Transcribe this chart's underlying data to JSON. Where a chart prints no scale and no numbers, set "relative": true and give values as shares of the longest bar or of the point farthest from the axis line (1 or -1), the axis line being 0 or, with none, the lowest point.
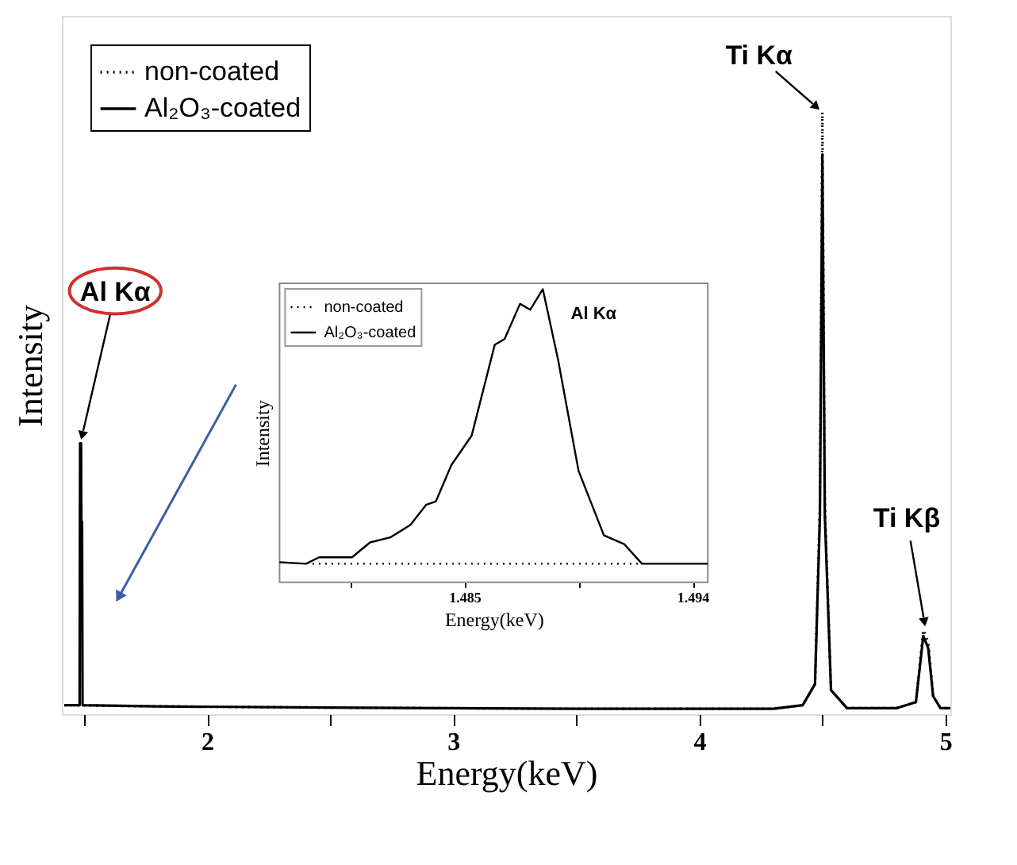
{
  "chart_data": [
    {
      "type": "line",
      "xlabel": "Energy(keV)",
      "ylabel": "Intensity",
      "relative": true,
      "xlim": [
        1.41,
        5.02
      ],
      "xticks": [
        {
          "value": 1.5,
          "label": null
        },
        2,
        {
          "value": 2.5,
          "label": null
        },
        3,
        {
          "value": 3.5,
          "label": null
        },
        4,
        {
          "value": 4.5,
          "label": null
        },
        5
      ],
      "tick_labels": "x",
      "legend": "top left",
      "grid": false,
      "series": [
        {
          "name": "non-coated",
          "color": "#000000",
          "line_style": "dotted",
          "x": [
            1.42,
            1.8,
            2.5,
            3.5,
            4.3,
            4.42,
            4.47,
            4.49,
            4.5,
            4.51,
            4.535,
            4.6,
            4.8,
            4.88,
            4.91,
            4.93,
            4.95,
            4.98,
            5.02
          ],
          "values": [
            0.015,
            0.013,
            0.011,
            0.009,
            0.009,
            0.015,
            0.05,
            0.35,
            1.0,
            0.35,
            0.04,
            0.01,
            0.01,
            0.02,
            0.14,
            0.12,
            0.03,
            0.01,
            0.01
          ]
        },
        {
          "name": "Al₂O₃-coated",
          "color": "#000000",
          "line_style": "solid",
          "x": [
            1.42,
            1.47,
            1.482,
            1.484,
            1.488,
            1.489,
            1.492,
            1.494,
            1.8,
            2.5,
            3.5,
            4.3,
            4.42,
            4.47,
            4.49,
            4.5,
            4.51,
            4.535,
            4.6,
            4.8,
            4.88,
            4.91,
            4.93,
            4.95,
            4.98,
            5.02
          ],
          "values": [
            0.015,
            0.015,
            0.015,
            0.45,
            0.45,
            0.32,
            0.32,
            0.015,
            0.013,
            0.011,
            0.009,
            0.009,
            0.015,
            0.05,
            0.33,
            0.93,
            0.33,
            0.04,
            0.01,
            0.01,
            0.02,
            0.13,
            0.11,
            0.03,
            0.01,
            0.01
          ]
        }
      ],
      "annotations": [
        {
          "text": "Al Kα",
          "x": 1.485,
          "y": 0.45
        },
        {
          "text": "Ti Kα",
          "x": 4.5,
          "y": 1.0
        },
        {
          "text": "Ti Kβ",
          "x": 4.92,
          "y": 0.14
        }
      ]
    },
    {
      "type": "line",
      "xlabel": "Energy(keV)",
      "ylabel": "Intensity",
      "relative": true,
      "xlim": [
        1.4777,
        1.4946
      ],
      "xticks": [
        {
          "value": 1.4805,
          "label": null
        },
        1.485,
        {
          "value": 1.4895,
          "label": null
        },
        1.494
      ],
      "tick_labels": "x",
      "legend": "top left",
      "grid": false,
      "series": [
        {
          "name": "non-coated",
          "color": "#000000",
          "line_style": "dotted",
          "x": [
            1.479,
            1.492
          ],
          "values": [
            0.063,
            0.063
          ]
        },
        {
          "name": "Al₂O₃-coated",
          "color": "#000000",
          "line_style": "solid",
          "x": [
            1.4777,
            1.47875,
            1.47926,
            1.48006,
            1.48056,
            1.48127,
            1.48207,
            1.48287,
            1.48348,
            1.48387,
            1.48448,
            1.48528,
            1.48619,
            1.48658,
            1.48719,
            1.48759,
            1.48809,
            1.48869,
            1.4895,
            1.4905,
            1.4913,
            1.492,
            1.4933,
            1.4946
          ],
          "values": [
            0.068,
            0.063,
            0.085,
            0.085,
            0.085,
            0.136,
            0.153,
            0.196,
            0.264,
            0.276,
            0.4,
            0.5,
            0.81,
            0.83,
            0.95,
            0.93,
            1.0,
            0.76,
            0.38,
            0.16,
            0.13,
            0.063,
            0.063,
            0.063
          ]
        }
      ],
      "annotations": [
        {
          "text": "Al Kα",
          "x": 1.48809,
          "y": 1.0
        }
      ]
    }
  ]
}
